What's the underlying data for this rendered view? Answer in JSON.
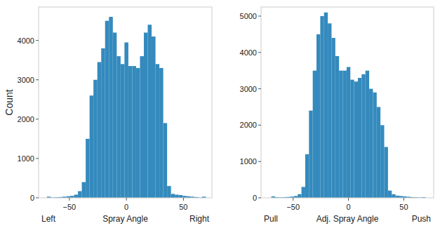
{
  "chart_data": [
    {
      "type": "histogram",
      "y_label": "Count",
      "x_label": "Spray Angle",
      "annotations": [
        "Left",
        "Right"
      ],
      "color": "#348abd",
      "bins": [
        -69.7,
        -66.3,
        -62.9,
        -59.5,
        -56.1,
        -52.7,
        -49.3,
        -45.9,
        -42.5,
        -39.1,
        -35.7,
        -32.3,
        -28.9,
        -25.5,
        -22.1,
        -18.7,
        -15.3,
        -11.9,
        -8.5,
        -5.1,
        -1.7,
        1.7,
        5.1,
        8.5,
        11.9,
        15.3,
        18.7,
        22.1,
        25.5,
        28.9,
        32.3,
        35.7,
        39.1,
        42.5,
        45.9,
        49.3,
        52.7,
        56.1,
        59.5,
        62.9,
        66.3,
        69.7
      ],
      "values": [
        30,
        10,
        15,
        20,
        30,
        40,
        50,
        80,
        170,
        400,
        1500,
        2600,
        3000,
        3450,
        3800,
        4500,
        4600,
        4200,
        3600,
        3400,
        3950,
        3350,
        3350,
        3300,
        3600,
        4200,
        4400,
        4100,
        3400,
        3300,
        1900,
        300,
        100,
        80,
        70,
        50,
        40,
        30,
        20,
        10,
        30
      ],
      "xlim": [
        -77,
        75
      ],
      "ylim": [
        0,
        4850
      ],
      "xticks": [
        {
          "value": -50,
          "label": "−50"
        },
        0,
        50
      ],
      "yticks": [
        0,
        1000,
        2000,
        3000,
        4000
      ],
      "grid": false
    },
    {
      "type": "histogram",
      "x_label": "Adj. Spray Angle",
      "annotations": [
        "Pull",
        "Push"
      ],
      "color": "#348abd",
      "bins": [
        -69.7,
        -66.3,
        -62.9,
        -59.5,
        -56.1,
        -52.7,
        -49.3,
        -45.9,
        -42.5,
        -39.1,
        -35.7,
        -32.3,
        -28.9,
        -25.5,
        -22.1,
        -18.7,
        -15.3,
        -11.9,
        -8.5,
        -5.1,
        -1.7,
        1.7,
        5.1,
        8.5,
        11.9,
        15.3,
        18.7,
        22.1,
        25.5,
        28.9,
        32.3,
        35.7,
        39.1,
        42.5,
        45.9,
        49.3,
        52.7,
        56.1,
        59.5,
        62.9,
        66.3,
        69.7
      ],
      "values": [
        40,
        20,
        15,
        20,
        25,
        35,
        50,
        100,
        300,
        1200,
        2400,
        3500,
        4500,
        5000,
        5100,
        4800,
        4400,
        3900,
        3500,
        3500,
        3600,
        3250,
        3200,
        3300,
        3400,
        3500,
        3000,
        2900,
        2500,
        2000,
        1400,
        200,
        100,
        60,
        50,
        40,
        30,
        20,
        15,
        10,
        20
      ],
      "xlim": [
        -79,
        77
      ],
      "ylim": [
        0,
        5250
      ],
      "xticks": [
        {
          "value": -50,
          "label": "−50"
        },
        0,
        50
      ],
      "yticks": [
        0,
        1000,
        2000,
        3000,
        4000,
        5000
      ],
      "grid": false
    }
  ]
}
